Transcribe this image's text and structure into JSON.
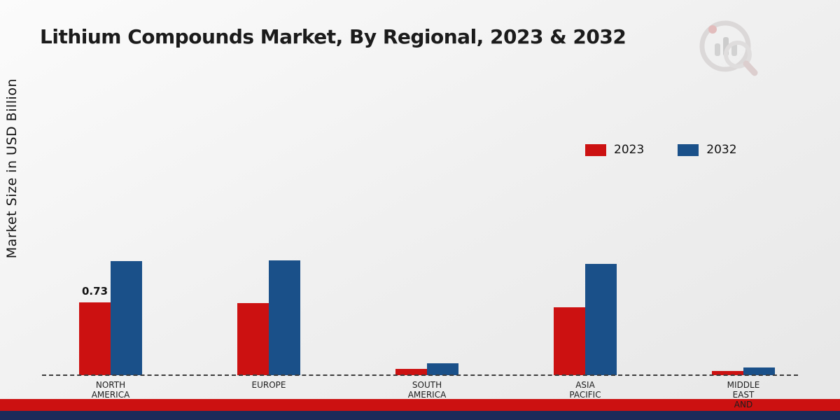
{
  "title": "Lithium Compounds Market, By Regional, 2023 & 2032",
  "y_axis": {
    "label": "Market Size in USD Billion"
  },
  "legend": {
    "items": [
      {
        "label": "2023",
        "color": "#cc1111"
      },
      {
        "label": "2032",
        "color": "#1a5089"
      }
    ]
  },
  "icons": {
    "logo": "bar-chart-magnifier-logo"
  },
  "footer": {
    "red_strip_color": "#cc1111",
    "navy_strip_color": "#1c2b5a"
  },
  "chart_data": {
    "type": "bar",
    "title": "Lithium Compounds Market, By Regional, 2023 & 2032",
    "ylabel": "Market Size in USD Billion",
    "categories": [
      "NORTH AMERICA",
      "EUROPE",
      "SOUTH AMERICA",
      "ASIA PACIFIC",
      "MIDDLE EAST AND"
    ],
    "category_label_lines": [
      [
        "NORTH",
        "AMERICA"
      ],
      [
        "EUROPE"
      ],
      [
        "SOUTH",
        "AMERICA"
      ],
      [
        "ASIA",
        "PACIFIC"
      ],
      [
        "MIDDLE",
        "EAST",
        "AND"
      ]
    ],
    "series": [
      {
        "name": "2023",
        "color": "#cc1111",
        "values": [
          0.73,
          0.72,
          0.06,
          0.68,
          0.04
        ]
      },
      {
        "name": "2032",
        "color": "#1a5089",
        "values": [
          1.14,
          1.15,
          0.12,
          1.11,
          0.08
        ]
      }
    ],
    "annotations": [
      {
        "series_index": 0,
        "category_index": 0,
        "text": "0.73"
      }
    ],
    "ylim": [
      0,
      2.8
    ],
    "grid": false,
    "legend_position": "upper right",
    "baseline_style": "dashed"
  }
}
